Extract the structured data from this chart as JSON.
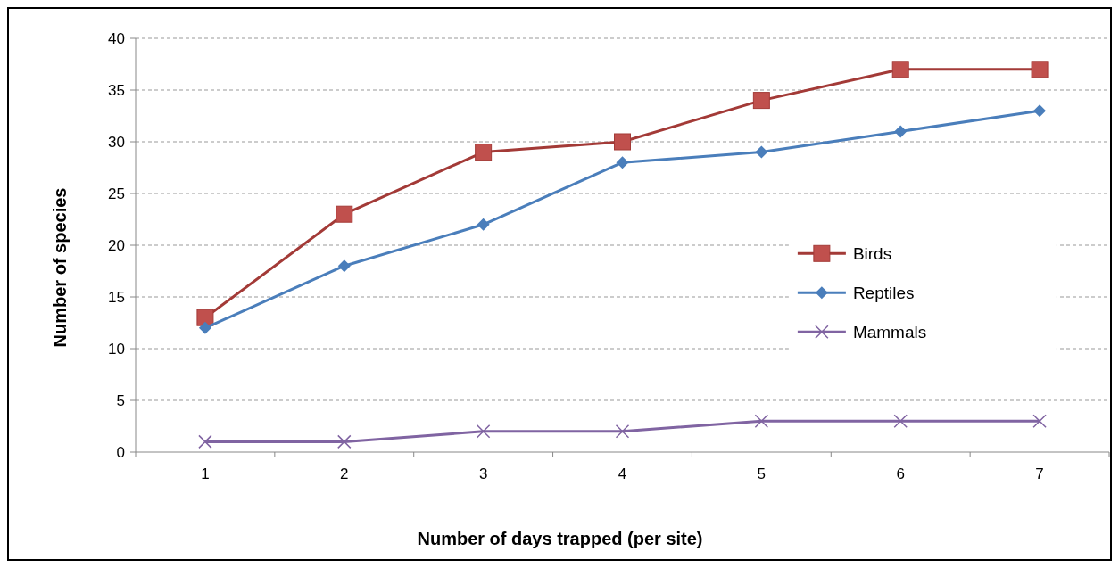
{
  "chart_data": {
    "type": "line",
    "xlabel": "Number of days trapped (per site)",
    "ylabel": "Number of species",
    "categories": [
      "1",
      "2",
      "3",
      "4",
      "5",
      "6",
      "7"
    ],
    "series": [
      {
        "name": "Birds",
        "color": "#a33a37",
        "marker": "square",
        "values": [
          13,
          23,
          29,
          30,
          34,
          37,
          37
        ]
      },
      {
        "name": "Reptiles",
        "color": "#4a7ebb",
        "marker": "diamond",
        "values": [
          12,
          18,
          22,
          28,
          29,
          31,
          33
        ]
      },
      {
        "name": "Mammals",
        "color": "#8064a2",
        "marker": "cross",
        "values": [
          1,
          1,
          2,
          2,
          3,
          3,
          3
        ]
      }
    ],
    "ylim": [
      0,
      40
    ],
    "yticks": [
      0,
      5,
      10,
      15,
      20,
      25,
      30,
      35,
      40
    ],
    "grid": "y",
    "legend": "right",
    "line_style": "solid"
  }
}
